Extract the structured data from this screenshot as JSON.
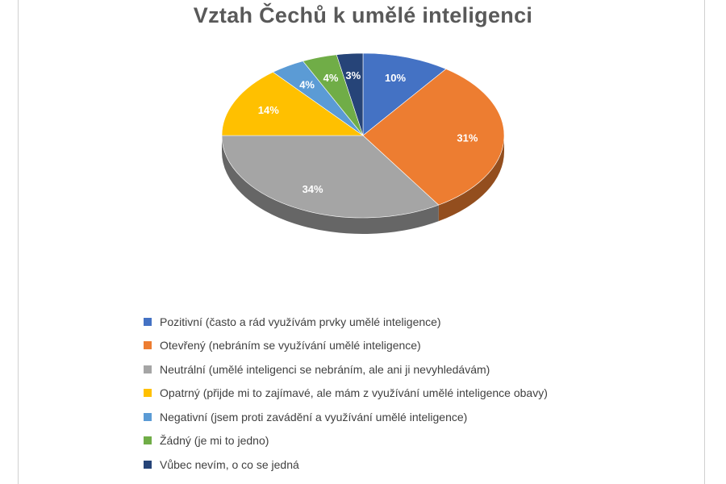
{
  "chart_data": {
    "type": "pie",
    "title": "Vztah Čechů k umělé inteligenci",
    "categories": [
      "Pozitivní (často a rád využívám prvky umělé inteligence)",
      "Otevřený (nebráním se využívání umělé inteligence)",
      "Neutrální (umělé inteligenci se nebráním, ale ani ji nevyhledávám)",
      "Opatrný (přijde mi to zajímavé, ale mám z využívání umělé inteligence obavy)",
      "Negativní (jsem proti zavádění a využívání umělé inteligence)",
      "Žádný (je mi to jedno)",
      "Vůbec nevím, o co se jedná"
    ],
    "values": [
      10,
      31,
      34,
      14,
      4,
      4,
      3
    ],
    "labels": [
      "10%",
      "31%",
      "34%",
      "14%",
      "4%",
      "4%",
      "3%"
    ],
    "colors": [
      "#4472C4",
      "#ED7D31",
      "#A5A5A5",
      "#FFC000",
      "#5B9BD5",
      "#70AD47",
      "#264478"
    ],
    "legend_position": "bottom",
    "style": "3d-pie"
  }
}
